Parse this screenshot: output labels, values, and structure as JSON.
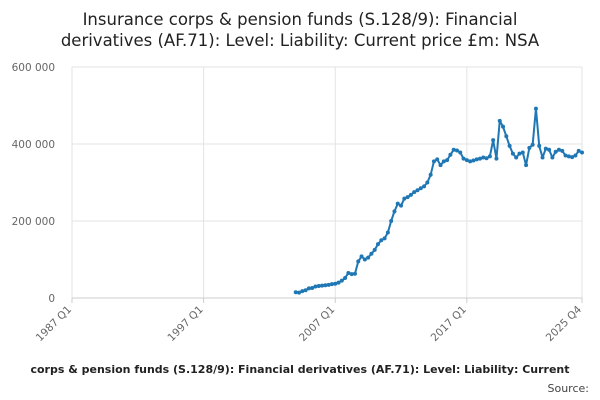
{
  "chart_data": {
    "type": "line",
    "title": "Insurance corps & pension funds (S.128/9): Financial derivatives (AF.71): Level: Liability: Current price £m: NSA",
    "title_lines": [
      "Insurance corps & pension funds (S.128/9): Financial",
      "derivatives (AF.71): Level: Liability: Current price £m: NSA"
    ],
    "legend_text": "corps & pension funds (S.128/9): Financial derivatives (AF.71): Level: Liability: Current",
    "source_text": "Source:",
    "x_ticks": [
      "1987 Q1",
      "1997 Q1",
      "2007 Q1",
      "2017 Q1",
      "2025 Q4"
    ],
    "y_ticks": [
      "0",
      "200 000",
      "400 000",
      "600 000"
    ],
    "ylim": [
      0,
      600000
    ],
    "xlim": [
      1987.0,
      2025.75
    ],
    "grid": true,
    "colors": {
      "series": "#1f77b4",
      "grid": "#e3e3e3"
    },
    "series": [
      {
        "x": [
          2004.0,
          2004.25,
          2004.5,
          2004.75,
          2005.0,
          2005.25,
          2005.5,
          2005.75,
          2006.0,
          2006.25,
          2006.5,
          2006.75,
          2007.0,
          2007.25,
          2007.5,
          2007.75,
          2008.0,
          2008.25,
          2008.5,
          2008.75,
          2009.0,
          2009.25,
          2009.5,
          2009.75,
          2010.0,
          2010.25,
          2010.5,
          2010.75,
          2011.0,
          2011.25,
          2011.5,
          2011.75,
          2012.0,
          2012.25,
          2012.5,
          2012.75,
          2013.0,
          2013.25,
          2013.5,
          2013.75,
          2014.0,
          2014.25,
          2014.5,
          2014.75,
          2015.0,
          2015.25,
          2015.5,
          2015.75,
          2016.0,
          2016.25,
          2016.5,
          2016.75,
          2017.0,
          2017.25,
          2017.5,
          2017.75,
          2018.0,
          2018.25,
          2018.5,
          2018.75,
          2019.0,
          2019.25,
          2019.5,
          2019.75,
          2020.0,
          2020.25,
          2020.5,
          2020.75,
          2021.0,
          2021.25,
          2021.5,
          2021.75,
          2022.0,
          2022.25,
          2022.5,
          2022.75,
          2023.0,
          2023.25,
          2023.5,
          2023.75,
          2024.0,
          2024.25,
          2024.5,
          2024.75,
          2025.0,
          2025.25,
          2025.5,
          2025.75
        ],
        "values": [
          15000,
          14000,
          18000,
          20000,
          25000,
          26000,
          30000,
          31000,
          32000,
          33000,
          34000,
          36000,
          37000,
          40000,
          45000,
          52000,
          65000,
          62000,
          63000,
          95000,
          108000,
          100000,
          105000,
          115000,
          125000,
          140000,
          150000,
          155000,
          170000,
          200000,
          225000,
          245000,
          240000,
          258000,
          262000,
          268000,
          275000,
          280000,
          285000,
          290000,
          300000,
          320000,
          355000,
          360000,
          345000,
          355000,
          358000,
          372000,
          385000,
          383000,
          378000,
          362000,
          358000,
          355000,
          357000,
          360000,
          362000,
          365000,
          363000,
          368000,
          410000,
          362000,
          460000,
          445000,
          420000,
          395000,
          375000,
          365000,
          375000,
          378000,
          345000,
          390000,
          398000,
          492000,
          395000,
          365000,
          388000,
          385000,
          365000,
          380000,
          385000,
          382000,
          370000,
          368000,
          366000,
          370000,
          382000,
          378000
        ]
      }
    ]
  }
}
